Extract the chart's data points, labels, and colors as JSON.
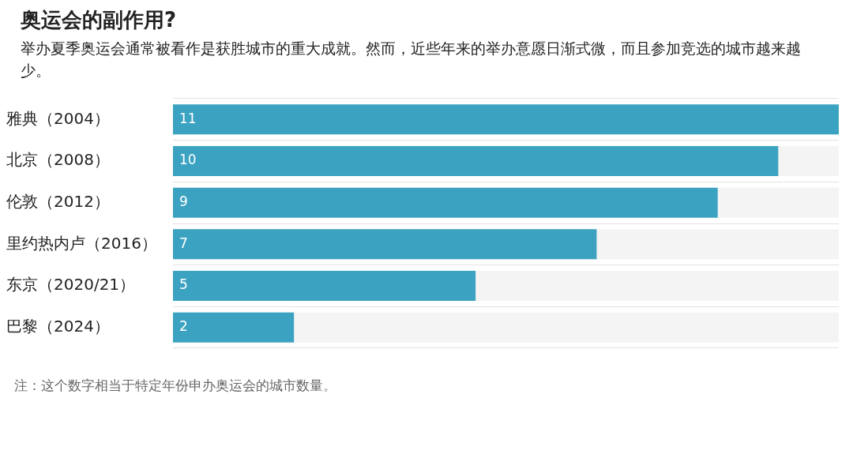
{
  "chart_data": {
    "type": "bar",
    "orientation": "horizontal",
    "title": "奥运会的副作用?",
    "subtitle": "举办夏季奥运会通常被看作是获胜城市的重大成就。然而，近些年来的举办意愿日渐式微，而且参加竞选的城市越来越少。",
    "categories": [
      "雅典（2004）",
      "北京（2008）",
      "伦敦（2012）",
      "里约热内卢（2016）",
      "东京（2020/21）",
      "巴黎（2024）"
    ],
    "values": [
      11,
      10,
      9,
      7,
      5,
      2
    ],
    "color": "#3ba3c1",
    "data_labels": true,
    "grid": "y",
    "annotations": [
      "注：这个数字相当于特定年份申办奥运会的城市数量。"
    ]
  }
}
